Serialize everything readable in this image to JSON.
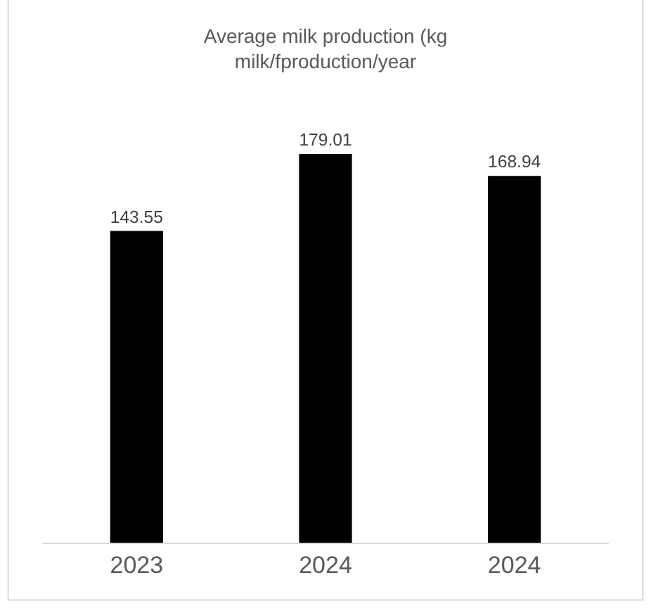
{
  "chart_data": {
    "type": "bar",
    "title": "Average milk production (kg milk/fproduction/year",
    "categories": [
      "2023",
      "2024",
      "2024"
    ],
    "values": [
      143.55,
      179.01,
      168.94
    ],
    "color": "#000000",
    "data_labels": true
  }
}
